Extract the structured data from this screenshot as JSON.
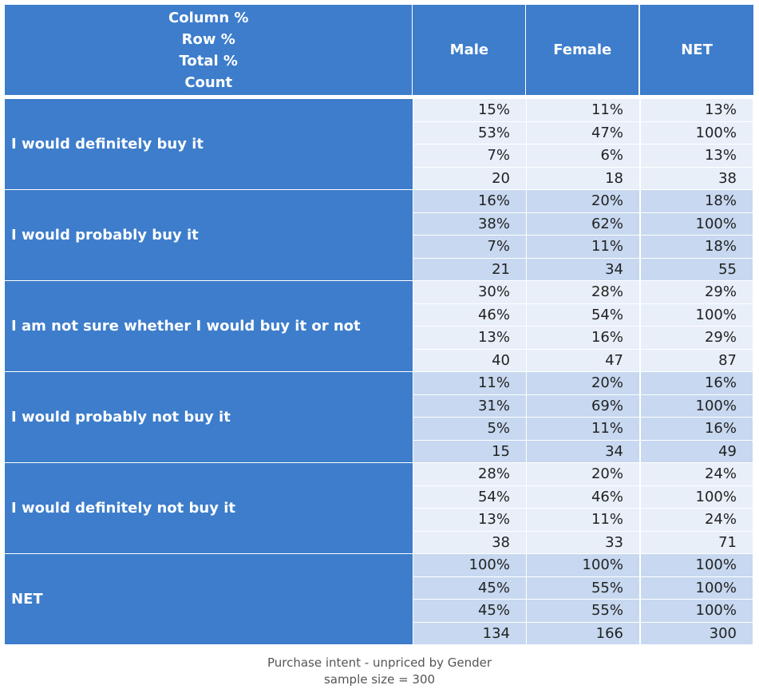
{
  "header": {
    "corner": [
      "Column %",
      "Row %",
      "Total %",
      "Count"
    ],
    "columns": [
      "Male",
      "Female",
      "NET"
    ]
  },
  "rows": [
    {
      "label": "I would definitely buy it",
      "male": [
        "15%",
        "53%",
        "7%",
        "20"
      ],
      "female": [
        "11%",
        "47%",
        "6%",
        "18"
      ],
      "net": [
        "13%",
        "100%",
        "13%",
        "38"
      ]
    },
    {
      "label": "I would probably buy it",
      "male": [
        "16%",
        "38%",
        "7%",
        "21"
      ],
      "female": [
        "20%",
        "62%",
        "11%",
        "34"
      ],
      "net": [
        "18%",
        "100%",
        "18%",
        "55"
      ]
    },
    {
      "label": "I am not sure whether I would buy it or not",
      "male": [
        "30%",
        "46%",
        "13%",
        "40"
      ],
      "female": [
        "28%",
        "54%",
        "16%",
        "47"
      ],
      "net": [
        "29%",
        "100%",
        "29%",
        "87"
      ]
    },
    {
      "label": "I would probably not buy it",
      "male": [
        "11%",
        "31%",
        "5%",
        "15"
      ],
      "female": [
        "20%",
        "69%",
        "11%",
        "34"
      ],
      "net": [
        "16%",
        "100%",
        "16%",
        "49"
      ]
    },
    {
      "label": "I would definitely not buy it",
      "male": [
        "28%",
        "54%",
        "13%",
        "38"
      ],
      "female": [
        "20%",
        "46%",
        "11%",
        "33"
      ],
      "net": [
        "24%",
        "100%",
        "24%",
        "71"
      ]
    },
    {
      "label": "NET",
      "male": [
        "100%",
        "45%",
        "45%",
        "134"
      ],
      "female": [
        "100%",
        "55%",
        "55%",
        "166"
      ],
      "net": [
        "100%",
        "100%",
        "100%",
        "300"
      ]
    }
  ],
  "footer": {
    "title": "Purchase intent - unpriced by Gender",
    "sample": "sample size = 300"
  },
  "colors": {
    "header": "#3d7dcb",
    "cell_light": "#e8eff9",
    "cell_dark": "#c7d8f0"
  }
}
